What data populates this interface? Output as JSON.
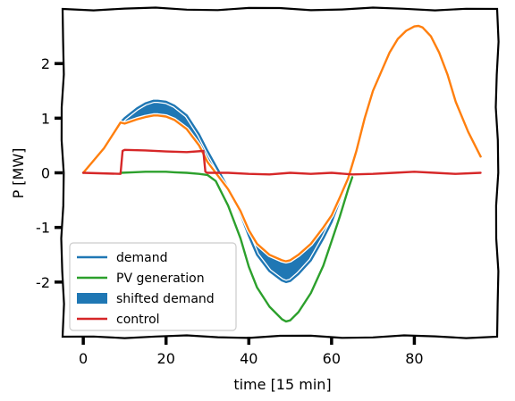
{
  "chart_data": {
    "type": "line",
    "style": "xkcd",
    "xlabel": "time [15 min]",
    "ylabel": "P [MW]",
    "xlim": [
      -5,
      100
    ],
    "ylim": [
      -3,
      3
    ],
    "xticks": [
      0,
      20,
      40,
      60,
      80
    ],
    "xtick_labels": [
      "0",
      "20",
      "40",
      "60",
      "80"
    ],
    "yticks": [
      -2,
      -1,
      0,
      1,
      2
    ],
    "ytick_labels": [
      "-2",
      "-1",
      "0",
      "1",
      "2"
    ],
    "grid": false,
    "legend": {
      "placement": "lower-left",
      "entries": [
        "demand",
        "PV generation",
        "shifted demand",
        "control"
      ]
    },
    "x": [
      0,
      5,
      9,
      10,
      13,
      15,
      17,
      18,
      20,
      22,
      25,
      28,
      29,
      30,
      35,
      38,
      40,
      42,
      45,
      48,
      49,
      50,
      52,
      55,
      58,
      60,
      62,
      64,
      66,
      68,
      70,
      72,
      74,
      76,
      78,
      80,
      81,
      82,
      84,
      86,
      88,
      90,
      93,
      96
    ],
    "series": [
      {
        "name": "demand",
        "color": "#1f77b4",
        "x": [
          0,
          5,
          9,
          10,
          13,
          15,
          17,
          18,
          20,
          22,
          25,
          28,
          29,
          30,
          35,
          38,
          40,
          42,
          45,
          48,
          49,
          50,
          52,
          55,
          58,
          60,
          62,
          64,
          66,
          68,
          70,
          72,
          74,
          76,
          78,
          80,
          81,
          82,
          84,
          86,
          88,
          90,
          93,
          96
        ],
        "values": [
          0,
          0.45,
          0.92,
          1.0,
          1.18,
          1.27,
          1.32,
          1.32,
          1.3,
          1.23,
          1.05,
          0.7,
          0.55,
          0.4,
          -0.28,
          -0.75,
          -1.15,
          -1.5,
          -1.8,
          -1.97,
          -2.0,
          -1.98,
          -1.85,
          -1.6,
          -1.2,
          -0.9,
          -0.5,
          -0.1,
          0.4,
          1.0,
          1.5,
          1.85,
          2.2,
          2.45,
          2.6,
          2.68,
          2.69,
          2.66,
          2.5,
          2.2,
          1.8,
          1.3,
          0.75,
          0.3
        ]
      },
      {
        "name": "PV generation",
        "color": "#2ca02c",
        "x": [
          9,
          12,
          15,
          18,
          20,
          22,
          25,
          28,
          30,
          32,
          35,
          38,
          40,
          42,
          45,
          48,
          49,
          50,
          52,
          55,
          58,
          60,
          62,
          64,
          65
        ],
        "values": [
          0,
          0.01,
          0.02,
          0.02,
          0.02,
          0.01,
          0,
          -0.02,
          -0.04,
          -0.15,
          -0.6,
          -1.2,
          -1.72,
          -2.1,
          -2.45,
          -2.68,
          -2.72,
          -2.7,
          -2.55,
          -2.2,
          -1.7,
          -1.25,
          -0.8,
          -0.3,
          -0.08
        ]
      },
      {
        "name": "shifted demand",
        "color": "#ff7f0e",
        "x": [
          0,
          5,
          9,
          10,
          13,
          15,
          17,
          18,
          20,
          22,
          25,
          28,
          29,
          30,
          35,
          38,
          40,
          42,
          45,
          48,
          49,
          50,
          52,
          55,
          58,
          60,
          62,
          64,
          66,
          68,
          70,
          72,
          74,
          76,
          78,
          80,
          81,
          82,
          84,
          86,
          88,
          90,
          93,
          96
        ],
        "values": [
          0,
          0.45,
          0.92,
          0.9,
          0.98,
          1.02,
          1.05,
          1.05,
          1.03,
          0.97,
          0.8,
          0.5,
          0.35,
          0.2,
          -0.3,
          -0.7,
          -1.05,
          -1.3,
          -1.5,
          -1.6,
          -1.62,
          -1.6,
          -1.5,
          -1.3,
          -1.0,
          -0.78,
          -0.45,
          -0.1,
          0.4,
          1.0,
          1.5,
          1.85,
          2.2,
          2.45,
          2.6,
          2.68,
          2.69,
          2.66,
          2.5,
          2.2,
          1.8,
          1.3,
          0.75,
          0.3
        ]
      },
      {
        "name": "control",
        "color": "#d62728",
        "x": [
          0,
          9,
          9.5,
          10,
          15,
          20,
          25,
          29,
          29.5,
          30,
          35,
          40,
          45,
          50,
          55,
          60,
          65,
          70,
          75,
          80,
          85,
          90,
          96
        ],
        "values": [
          0,
          -0.02,
          0.4,
          0.42,
          0.41,
          0.39,
          0.38,
          0.4,
          0.02,
          0,
          0,
          -0.02,
          -0.03,
          0,
          -0.02,
          0,
          -0.03,
          -0.02,
          0,
          0.02,
          0,
          -0.02,
          0
        ]
      }
    ],
    "fill_between": {
      "name": "shifted demand",
      "color": "#1f77b4",
      "between": [
        "demand",
        "shifted demand"
      ],
      "x_from": 9,
      "x_to": 62
    }
  }
}
